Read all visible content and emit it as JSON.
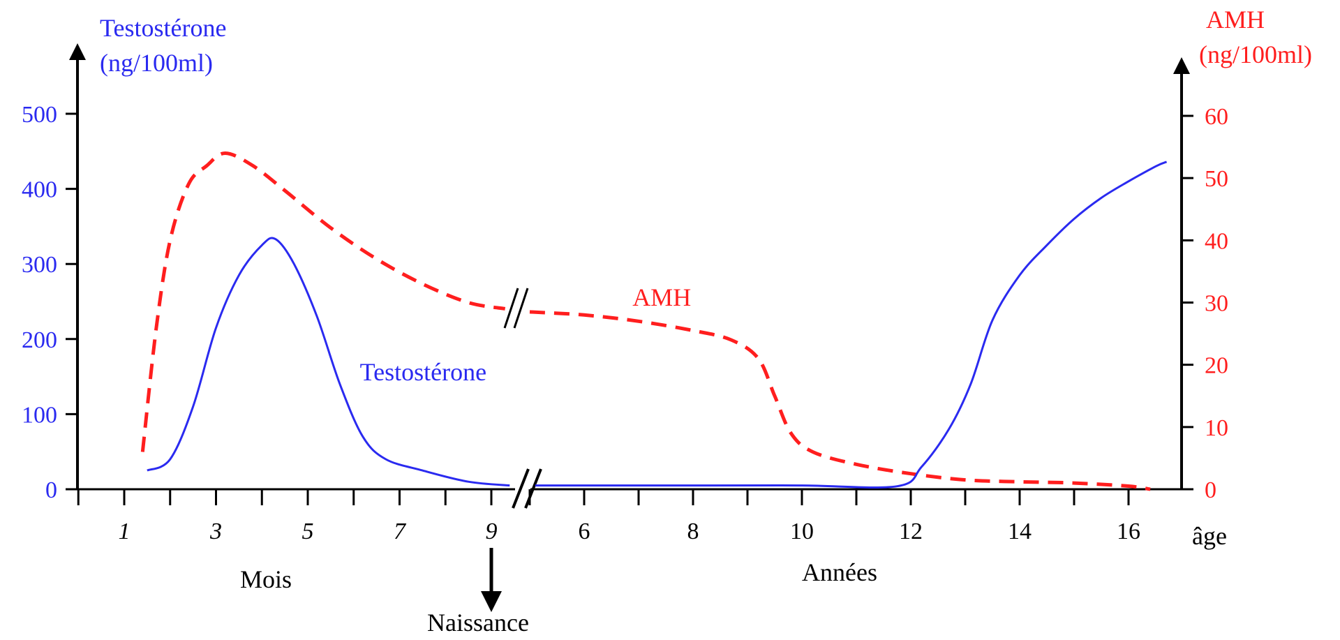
{
  "colors": {
    "testosterone": "#2a2af0",
    "amh": "#ff1e1e",
    "axis": "#000000"
  },
  "chart_data": {
    "type": "line",
    "left_axis": {
      "title_line1": "Testostérone",
      "title_line2": "(ng/100ml)",
      "ticks": [
        0,
        100,
        200,
        300,
        400,
        500
      ],
      "ylim": [
        0,
        500
      ]
    },
    "right_axis": {
      "title_line1": "AMH",
      "title_line2": "(ng/100ml)",
      "ticks": [
        0,
        10,
        20,
        30,
        40,
        50,
        60
      ],
      "ylim": [
        0,
        60
      ]
    },
    "x_axis": {
      "label": "âge",
      "months_label": "Mois",
      "years_label": "Années",
      "months_ticks": [
        "1",
        "3",
        "5",
        "7",
        "9"
      ],
      "years_ticks": [
        "6",
        "8",
        "10",
        "12",
        "14",
        "16"
      ],
      "birth_label": "Naissance",
      "axis_break": true
    },
    "series": [
      {
        "name": "Testostérone",
        "style": "solid",
        "axis": "left",
        "points": [
          {
            "segment": "months",
            "x": 1.5,
            "y": 25
          },
          {
            "segment": "months",
            "x": 2.0,
            "y": 40
          },
          {
            "segment": "months",
            "x": 2.5,
            "y": 110
          },
          {
            "segment": "months",
            "x": 3.0,
            "y": 215
          },
          {
            "segment": "months",
            "x": 3.5,
            "y": 285
          },
          {
            "segment": "months",
            "x": 4.0,
            "y": 325
          },
          {
            "segment": "months",
            "x": 4.3,
            "y": 333
          },
          {
            "segment": "months",
            "x": 4.7,
            "y": 300
          },
          {
            "segment": "months",
            "x": 5.2,
            "y": 230
          },
          {
            "segment": "months",
            "x": 5.7,
            "y": 140
          },
          {
            "segment": "months",
            "x": 6.2,
            "y": 70
          },
          {
            "segment": "months",
            "x": 6.7,
            "y": 40
          },
          {
            "segment": "months",
            "x": 7.5,
            "y": 25
          },
          {
            "segment": "months",
            "x": 8.5,
            "y": 10
          },
          {
            "segment": "months",
            "x": 9.4,
            "y": 5
          },
          {
            "segment": "years",
            "x": 5.1,
            "y": 5
          },
          {
            "segment": "years",
            "x": 8.0,
            "y": 5
          },
          {
            "segment": "years",
            "x": 10.0,
            "y": 5
          },
          {
            "segment": "years",
            "x": 11.75,
            "y": 4
          },
          {
            "segment": "years",
            "x": 12.2,
            "y": 30
          },
          {
            "segment": "years",
            "x": 12.7,
            "y": 80
          },
          {
            "segment": "years",
            "x": 13.1,
            "y": 140
          },
          {
            "segment": "years",
            "x": 13.5,
            "y": 225
          },
          {
            "segment": "years",
            "x": 14.0,
            "y": 285
          },
          {
            "segment": "years",
            "x": 14.5,
            "y": 325
          },
          {
            "segment": "years",
            "x": 15.0,
            "y": 360
          },
          {
            "segment": "years",
            "x": 15.5,
            "y": 388
          },
          {
            "segment": "years",
            "x": 16.0,
            "y": 410
          },
          {
            "segment": "years",
            "x": 16.5,
            "y": 430
          },
          {
            "segment": "years",
            "x": 16.7,
            "y": 436
          }
        ]
      },
      {
        "name": "AMH",
        "style": "dashed",
        "axis": "right",
        "points": [
          {
            "segment": "months",
            "x": 1.4,
            "y": 6
          },
          {
            "segment": "months",
            "x": 1.7,
            "y": 26
          },
          {
            "segment": "months",
            "x": 2.0,
            "y": 40
          },
          {
            "segment": "months",
            "x": 2.4,
            "y": 49
          },
          {
            "segment": "months",
            "x": 2.8,
            "y": 52
          },
          {
            "segment": "months",
            "x": 3.2,
            "y": 54
          },
          {
            "segment": "months",
            "x": 3.8,
            "y": 52
          },
          {
            "segment": "months",
            "x": 4.5,
            "y": 48
          },
          {
            "segment": "months",
            "x": 5.5,
            "y": 42
          },
          {
            "segment": "months",
            "x": 6.5,
            "y": 37
          },
          {
            "segment": "months",
            "x": 7.5,
            "y": 33
          },
          {
            "segment": "months",
            "x": 8.5,
            "y": 30
          },
          {
            "segment": "months",
            "x": 9.3,
            "y": 29
          },
          {
            "segment": "years",
            "x": 5.0,
            "y": 28.5
          },
          {
            "segment": "years",
            "x": 6.0,
            "y": 28
          },
          {
            "segment": "years",
            "x": 7.0,
            "y": 27
          },
          {
            "segment": "years",
            "x": 8.0,
            "y": 25.5
          },
          {
            "segment": "years",
            "x": 8.7,
            "y": 24
          },
          {
            "segment": "years",
            "x": 9.2,
            "y": 21
          },
          {
            "segment": "years",
            "x": 9.5,
            "y": 15
          },
          {
            "segment": "years",
            "x": 9.8,
            "y": 9
          },
          {
            "segment": "years",
            "x": 10.2,
            "y": 6
          },
          {
            "segment": "years",
            "x": 11.0,
            "y": 4
          },
          {
            "segment": "years",
            "x": 12.0,
            "y": 2.5
          },
          {
            "segment": "years",
            "x": 13.0,
            "y": 1.5
          },
          {
            "segment": "years",
            "x": 14.0,
            "y": 1.2
          },
          {
            "segment": "years",
            "x": 15.0,
            "y": 1
          },
          {
            "segment": "years",
            "x": 16.0,
            "y": 0.5
          },
          {
            "segment": "years",
            "x": 16.4,
            "y": 0
          }
        ]
      }
    ],
    "annotations": [
      {
        "text": "AMH",
        "segment": "years",
        "x": 7.4,
        "right_y": 29.5
      },
      {
        "text": "Testostérone",
        "segment": "months",
        "x": 7.2,
        "left_y": 145
      }
    ]
  }
}
